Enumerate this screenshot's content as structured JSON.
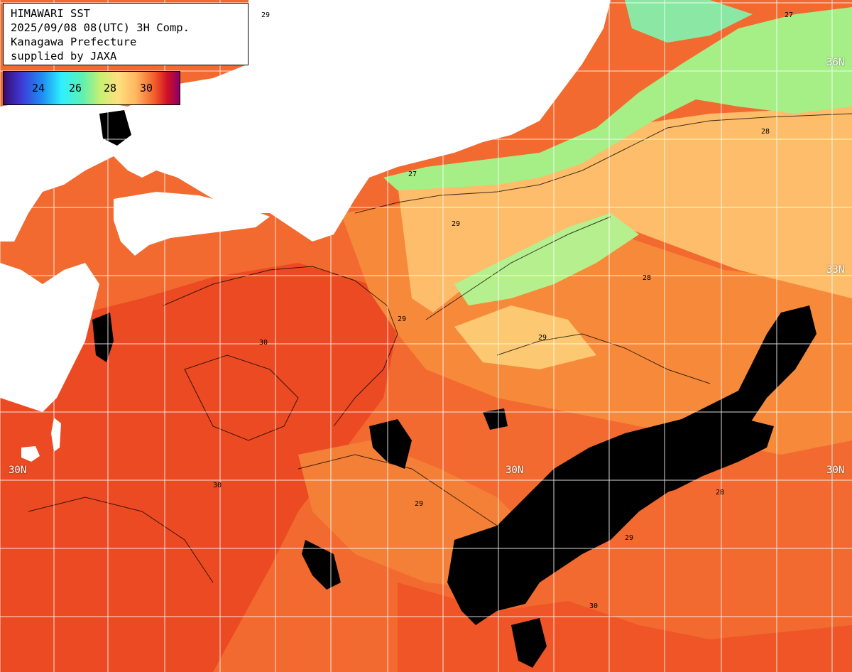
{
  "title_box": {
    "line1": "HIMAWARI SST",
    "line2": "2025/09/08 08(UTC) 3H Comp.",
    "line3": "Kanagawa Prefecture",
    "line4": "supplied by JAXA"
  },
  "legend": {
    "ticks": [
      "24",
      "26",
      "28",
      "30"
    ]
  },
  "lat_labels": {
    "n36_right": "36N",
    "n33_right": "33N",
    "n30_left": "30N",
    "n30_mid": "30N",
    "n30_right": "30N"
  },
  "contour_labels": [
    "29",
    "28",
    "27",
    "30"
  ],
  "colors": {
    "land": "#ffffff",
    "cloud": "#000000",
    "sst_30": "#ee4a22",
    "sst_29": "#f68a3a",
    "sst_28": "#fdbd6a",
    "sst_27": "#a6f080",
    "grid": "#ffffff"
  }
}
